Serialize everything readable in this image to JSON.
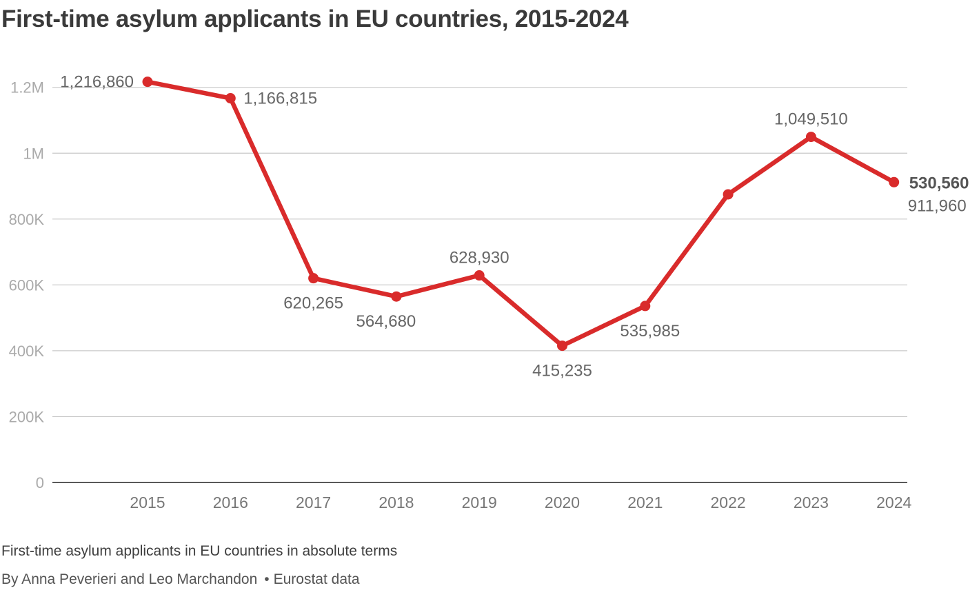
{
  "title": "First-time asylum applicants in EU countries, 2015-2024",
  "caption": "First-time asylum applicants in EU countries in absolute terms",
  "byline": {
    "authors": "By Anna Peverieri and Leo Marchandon",
    "separator": "•",
    "source": "Eurostat data"
  },
  "colors": {
    "line": "#d92b2b",
    "grid": "#c8c8c8",
    "axis": "#222222",
    "tick_label": "#aaaaaa",
    "x_label": "#777777",
    "data_label": "#666666",
    "highlight_label": "#555555"
  },
  "chart_data": {
    "type": "line",
    "title": "First-time asylum applicants in EU countries, 2015-2024",
    "xlabel": "",
    "ylabel": "",
    "ylim": [
      0,
      1250000
    ],
    "yticks": [
      0,
      200000,
      400000,
      600000,
      800000,
      1000000,
      1200000
    ],
    "ytick_labels": [
      "0",
      "200K",
      "400K",
      "600K",
      "800K",
      "1M",
      "1.2M"
    ],
    "grid": true,
    "categories": [
      "2015",
      "2016",
      "2017",
      "2018",
      "2019",
      "2020",
      "2021",
      "2022",
      "2023",
      "2024"
    ],
    "series": [
      {
        "name": "First-time asylum applicants",
        "values": [
          1216860,
          1166815,
          620265,
          564680,
          628930,
          415235,
          535985,
          875000,
          1049510,
          911960
        ]
      }
    ],
    "data_labels": [
      "1,216,860",
      "1,166,815",
      "620,265",
      "564,680",
      "628,930",
      "415,235",
      "535,985",
      "",
      "1,049,510",
      "911,960"
    ],
    "data_label_positions": [
      "left",
      "right",
      "below",
      "below",
      "above",
      "below",
      "below",
      "none",
      "above",
      "right-below"
    ],
    "annotations": [
      {
        "text": "530,560",
        "category": "2024",
        "bold": true
      }
    ]
  }
}
